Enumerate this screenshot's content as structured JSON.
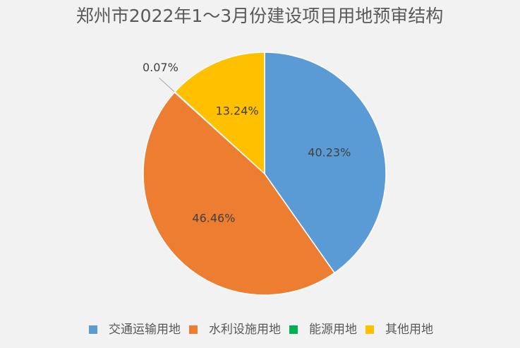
{
  "chart_data": {
    "type": "pie",
    "title": "郑州市2022年1～3月份建设项目用地预审结构",
    "categories": [
      "交通运输用地",
      "水利设施用地",
      "能源用地",
      "其他用地"
    ],
    "values": [
      40.23,
      46.46,
      0.07,
      13.24
    ],
    "value_labels": [
      "40.23%",
      "46.46%",
      "0.07%",
      "13.24%"
    ],
    "colors": [
      "#5b9bd5",
      "#ed7d31",
      "#00b050",
      "#ffc000"
    ],
    "legend": "bottom"
  }
}
